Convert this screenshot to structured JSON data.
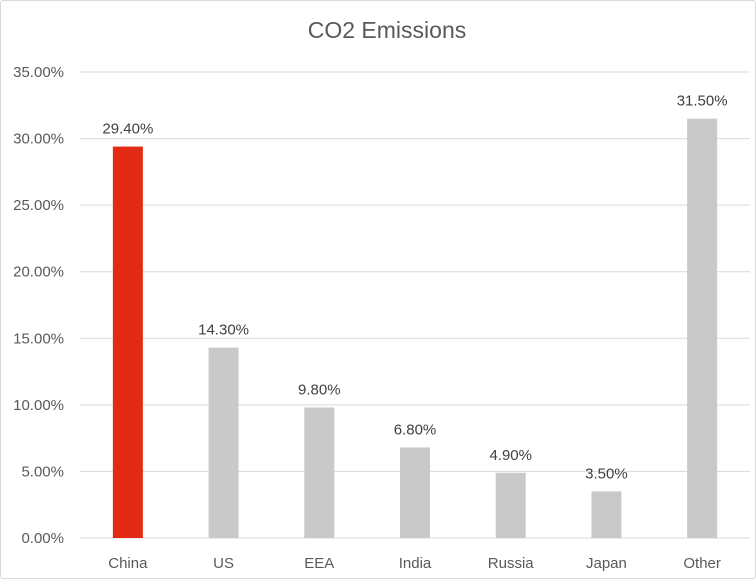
{
  "chart_data": {
    "type": "bar",
    "title": "CO2 Emissions",
    "xlabel": "",
    "ylabel": "",
    "categories": [
      "China",
      "US",
      "EEA",
      "India",
      "Russia",
      "Japan",
      "Other"
    ],
    "values": [
      29.4,
      14.3,
      9.8,
      6.8,
      4.9,
      3.5,
      31.5
    ],
    "value_labels": [
      "29.40%",
      "14.30%",
      "9.80%",
      "6.80%",
      "4.90%",
      "3.50%",
      "31.50%"
    ],
    "ylim": [
      0,
      35
    ],
    "y_ticks": [
      0,
      5,
      10,
      15,
      20,
      25,
      30,
      35
    ],
    "y_tick_labels": [
      "0.00%",
      "5.00%",
      "10.00%",
      "15.00%",
      "20.00%",
      "25.00%",
      "30.00%",
      "35.00%"
    ],
    "grid": true,
    "legend": "none",
    "colors": {
      "highlight": "#e32a12",
      "bar": "#c9c9c9",
      "grid": "#d9d9d9",
      "text": "#595959"
    },
    "highlight_category": "China"
  }
}
